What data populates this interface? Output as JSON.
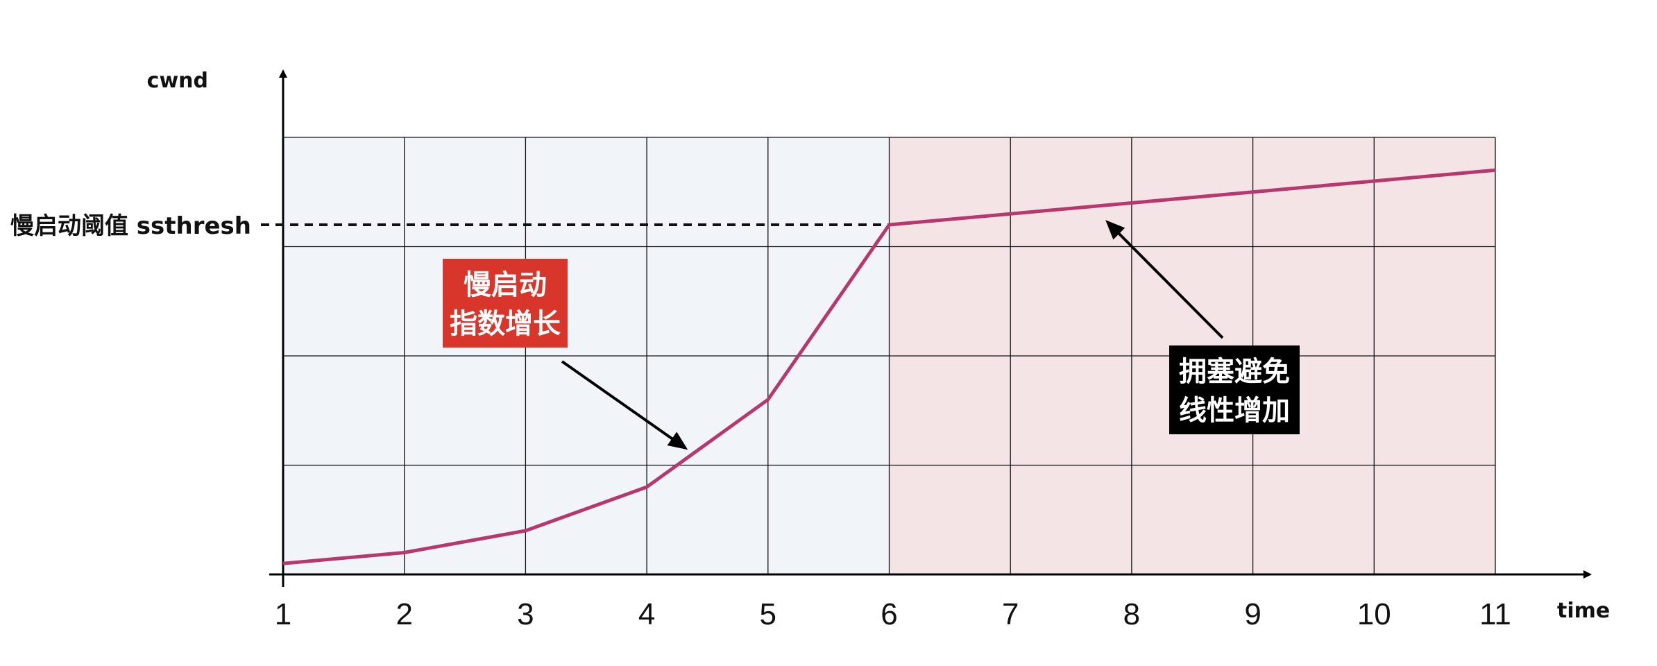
{
  "chart_data": {
    "type": "line",
    "ylabel": "cwnd",
    "xlabel": "time",
    "threshold_label": "慢启动阈值 ssthresh",
    "x": [
      1,
      2,
      3,
      4,
      5,
      6,
      7,
      8,
      9,
      10,
      11
    ],
    "xlim": [
      1,
      11
    ],
    "ylim": [
      0,
      4
    ],
    "grid": true,
    "threshold": 3.2,
    "series": [
      {
        "values": [
          0.1,
          0.2,
          0.4,
          0.8,
          1.6,
          3.2,
          3.3,
          3.4,
          3.5,
          3.6,
          3.7
        ]
      }
    ],
    "regions": [
      {
        "from": 1,
        "to": 6,
        "color": "#f1f4f9"
      },
      {
        "from": 6,
        "to": 11,
        "color": "#f4e4e6"
      }
    ],
    "annotations": [
      {
        "lines": [
          "慢启动",
          "指数增长"
        ],
        "background": "#d9362b"
      },
      {
        "lines": [
          "拥塞避免",
          "线性增加"
        ],
        "background": "#000000"
      }
    ],
    "colors": {
      "line": "#b5386e",
      "grid": "#111111",
      "axis": "#000000"
    }
  }
}
